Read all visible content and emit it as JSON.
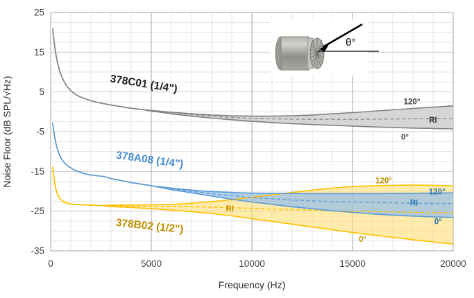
{
  "chart_data": {
    "type": "line",
    "title": "",
    "xlabel": "Frequency (Hz)",
    "ylabel": "Noise Floor (dB SPL/√Hz)",
    "xlim": [
      0,
      20000
    ],
    "ylim": [
      -35,
      25
    ],
    "x_ticks": [
      0,
      5000,
      10000,
      15000,
      20000
    ],
    "y_ticks": [
      25,
      15,
      5,
      -5,
      -15,
      -25,
      -35
    ],
    "x_minor_step_hz": 1000,
    "y_minor_step_db": 2.5,
    "grid": true,
    "legend_position": "inline-annotations",
    "series": [
      {
        "id": "378B02",
        "name": "378B02 (1/2\")",
        "color": "#ffc000",
        "dash_color": "#ffc000",
        "fill": "#ffda66",
        "fill_opacity": 0.55,
        "label": {
          "text": "378B02 (1/2\")",
          "f": 4900,
          "db": -29.6,
          "rot": 6,
          "color": "#bf9000"
        },
        "annotations": [
          {
            "text": "120°",
            "f": 16550,
            "db": -17.3,
            "color": "#bf9000"
          },
          {
            "text": "RI",
            "f": 8900,
            "db": -24.4,
            "color": "#bf9000"
          },
          {
            "text": "0°",
            "f": 15500,
            "db": -32.0,
            "color": "#bf9000"
          }
        ],
        "ri": [
          [
            100,
            -13.8
          ],
          [
            150,
            -16.1
          ],
          [
            200,
            -17.9
          ],
          [
            250,
            -19.2
          ],
          [
            300,
            -20.2
          ],
          [
            400,
            -21.4
          ],
          [
            500,
            -22.1
          ],
          [
            600,
            -22.5
          ],
          [
            700,
            -22.8
          ],
          [
            800,
            -23
          ],
          [
            1000,
            -23.2
          ],
          [
            1200,
            -23.3
          ],
          [
            1500,
            -23.4
          ],
          [
            2000,
            -23.5
          ],
          [
            2500,
            -23.6
          ],
          [
            3000,
            -23.65
          ],
          [
            4000,
            -23.75
          ],
          [
            5000,
            -23.8
          ],
          [
            6000,
            -23.85
          ],
          [
            7000,
            -23.9
          ],
          [
            8000,
            -24
          ],
          [
            9000,
            -24.15
          ],
          [
            10000,
            -24.3
          ],
          [
            11000,
            -24.45
          ],
          [
            12000,
            -24.6
          ],
          [
            13000,
            -24.75
          ],
          [
            14000,
            -24.9
          ],
          [
            15000,
            -25
          ],
          [
            16000,
            -25.1
          ],
          [
            17000,
            -25.2
          ],
          [
            18000,
            -25.3
          ],
          [
            19000,
            -25.35
          ],
          [
            20000,
            -25.4
          ]
        ],
        "upper": [
          [
            2700,
            -23.55
          ],
          [
            3000,
            -23.5
          ],
          [
            4000,
            -23.45
          ],
          [
            5000,
            -23.4
          ],
          [
            6000,
            -23.3
          ],
          [
            7000,
            -23
          ],
          [
            8000,
            -22.6
          ],
          [
            9000,
            -22.1
          ],
          [
            10000,
            -21.5
          ],
          [
            11000,
            -20.9
          ],
          [
            12000,
            -20.3
          ],
          [
            13000,
            -19.7
          ],
          [
            14000,
            -19.2
          ],
          [
            15000,
            -18.8
          ],
          [
            16000,
            -18.6
          ],
          [
            17000,
            -18.5
          ],
          [
            18000,
            -18.45
          ],
          [
            19000,
            -18.5
          ],
          [
            20000,
            -18.6
          ]
        ],
        "lower": [
          [
            2700,
            -23.7
          ],
          [
            3000,
            -23.85
          ],
          [
            4000,
            -24.1
          ],
          [
            5000,
            -24.4
          ],
          [
            6000,
            -24.75
          ],
          [
            7000,
            -25.15
          ],
          [
            8000,
            -25.6
          ],
          [
            9000,
            -26.2
          ],
          [
            10000,
            -26.9
          ],
          [
            11000,
            -27.6
          ],
          [
            12000,
            -28.3
          ],
          [
            13000,
            -29
          ],
          [
            14000,
            -29.7
          ],
          [
            15000,
            -30.4
          ],
          [
            16000,
            -31
          ],
          [
            17000,
            -31.6
          ],
          [
            18000,
            -32.2
          ],
          [
            19000,
            -32.75
          ],
          [
            20000,
            -33.3
          ]
        ]
      },
      {
        "id": "378A08",
        "name": "378A08 (1/4\")",
        "color": "#5b9bd5",
        "dash_color": "#5b9bd5",
        "fill": "#9dc3e6",
        "fill_opacity": 0.8,
        "label": {
          "text": "378A08 (1/4\")",
          "f": 4900,
          "db": -12.9,
          "rot": 8,
          "color": "#4a8fd1"
        },
        "annotations": [
          {
            "text": "120°",
            "f": 19200,
            "db": -20.1,
            "color": "#2e75b6"
          },
          {
            "text": "RI",
            "f": 18050,
            "db": -22.9,
            "color": "#2e75b6"
          },
          {
            "text": "0°",
            "f": 19250,
            "db": -27.6,
            "color": "#2e75b6"
          }
        ],
        "ri": [
          [
            100,
            -2.8
          ],
          [
            150,
            -4.6
          ],
          [
            200,
            -6.3
          ],
          [
            250,
            -7.7
          ],
          [
            300,
            -8.8
          ],
          [
            400,
            -10.4
          ],
          [
            500,
            -11.5
          ],
          [
            600,
            -12.3
          ],
          [
            700,
            -12.9
          ],
          [
            800,
            -13.4
          ],
          [
            900,
            -13.8
          ],
          [
            1000,
            -14.1
          ],
          [
            1200,
            -14.7
          ],
          [
            1400,
            -15.1
          ],
          [
            1700,
            -15.6
          ],
          [
            2000,
            -15.9
          ],
          [
            2300,
            -16.1
          ],
          [
            2600,
            -16.25
          ],
          [
            2800,
            -16.5
          ],
          [
            3000,
            -16.8
          ],
          [
            3500,
            -17.3
          ],
          [
            4000,
            -17.8
          ],
          [
            4500,
            -18.2
          ],
          [
            5000,
            -18.6
          ],
          [
            5500,
            -19
          ],
          [
            6000,
            -19.4
          ],
          [
            6500,
            -19.7
          ],
          [
            7000,
            -20
          ],
          [
            7500,
            -20.3
          ],
          [
            8000,
            -20.6
          ],
          [
            8500,
            -20.9
          ],
          [
            9000,
            -21.1
          ],
          [
            9500,
            -21.35
          ],
          [
            10000,
            -21.6
          ],
          [
            11000,
            -21.9
          ],
          [
            12000,
            -22.2
          ],
          [
            13000,
            -22.4
          ],
          [
            14000,
            -22.6
          ],
          [
            15000,
            -22.7
          ],
          [
            16000,
            -22.8
          ],
          [
            17000,
            -22.9
          ],
          [
            18000,
            -23
          ],
          [
            19000,
            -23.05
          ],
          [
            20000,
            -23.1
          ]
        ],
        "upper": [
          [
            5500,
            -18.9
          ],
          [
            6000,
            -19.2
          ],
          [
            6500,
            -19.45
          ],
          [
            7000,
            -19.7
          ],
          [
            7500,
            -19.9
          ],
          [
            8000,
            -20.05
          ],
          [
            8500,
            -20.2
          ],
          [
            9000,
            -20.3
          ],
          [
            9500,
            -20.4
          ],
          [
            10000,
            -20.45
          ],
          [
            11000,
            -20.5
          ],
          [
            12000,
            -20.55
          ],
          [
            13000,
            -20.6
          ],
          [
            14000,
            -20.6
          ],
          [
            15000,
            -20.6
          ],
          [
            16000,
            -20.6
          ],
          [
            17000,
            -20.55
          ],
          [
            18000,
            -20.5
          ],
          [
            19000,
            -20.45
          ],
          [
            20000,
            -20.4
          ]
        ],
        "lower": [
          [
            5500,
            -19.1
          ],
          [
            6000,
            -19.6
          ],
          [
            6500,
            -20
          ],
          [
            7000,
            -20.4
          ],
          [
            7500,
            -20.8
          ],
          [
            8000,
            -21.2
          ],
          [
            8500,
            -21.6
          ],
          [
            9000,
            -22
          ],
          [
            9500,
            -22.35
          ],
          [
            10000,
            -22.7
          ],
          [
            11000,
            -23.3
          ],
          [
            12000,
            -23.9
          ],
          [
            13000,
            -24.4
          ],
          [
            14000,
            -24.9
          ],
          [
            15000,
            -25.3
          ],
          [
            16000,
            -25.7
          ],
          [
            17000,
            -26
          ],
          [
            18000,
            -26.25
          ],
          [
            19000,
            -26.45
          ],
          [
            20000,
            -26.6
          ]
        ]
      },
      {
        "id": "378C01",
        "name": "378C01 (1/4\")",
        "color": "#7f7f7f",
        "dash_color": "#8c8c8c",
        "fill": "#d2d2d2",
        "fill_opacity": 0.9,
        "label": {
          "text": "378C01 (1/4\")",
          "f": 4600,
          "db": 6.2,
          "rot": 9,
          "color": "#1f1f1f"
        },
        "annotations": [
          {
            "text": "120°",
            "f": 17950,
            "db": 2.6,
            "color": "#404040"
          },
          {
            "text": "RI",
            "f": 19000,
            "db": -2.0,
            "color": "#333333"
          },
          {
            "text": "0°",
            "f": 17600,
            "db": -6.3,
            "color": "#404040"
          }
        ],
        "ri": [
          [
            100,
            21
          ],
          [
            150,
            18.6
          ],
          [
            200,
            16.4
          ],
          [
            250,
            14.7
          ],
          [
            300,
            13.3
          ],
          [
            400,
            11.1
          ],
          [
            500,
            9.5
          ],
          [
            600,
            8.3
          ],
          [
            700,
            7.3
          ],
          [
            800,
            6.5
          ],
          [
            900,
            5.9
          ],
          [
            1000,
            5.3
          ],
          [
            1200,
            4.5
          ],
          [
            1400,
            3.9
          ],
          [
            1700,
            3.3
          ],
          [
            2000,
            2.8
          ],
          [
            2300,
            2.4
          ],
          [
            2600,
            2.1
          ],
          [
            3000,
            1.7
          ],
          [
            3500,
            1.3
          ],
          [
            4000,
            0.9
          ],
          [
            4500,
            0.6
          ],
          [
            5000,
            0.3
          ],
          [
            5500,
            0.05
          ],
          [
            6000,
            -0.2
          ],
          [
            6500,
            -0.45
          ],
          [
            7000,
            -0.7
          ],
          [
            7500,
            -0.9
          ],
          [
            8000,
            -1.1
          ],
          [
            8500,
            -1.3
          ],
          [
            9000,
            -1.45
          ],
          [
            9500,
            -1.55
          ],
          [
            10000,
            -1.65
          ],
          [
            11000,
            -1.75
          ],
          [
            12000,
            -1.85
          ],
          [
            13000,
            -1.9
          ],
          [
            14000,
            -1.9
          ],
          [
            15000,
            -1.9
          ],
          [
            16000,
            -1.85
          ],
          [
            17000,
            -1.8
          ],
          [
            18000,
            -1.75
          ],
          [
            19000,
            -1.7
          ],
          [
            20000,
            -1.65
          ]
        ],
        "upper": [
          [
            5000,
            0.35
          ],
          [
            6000,
            -0.1
          ],
          [
            7000,
            -0.5
          ],
          [
            8000,
            -0.8
          ],
          [
            9000,
            -1
          ],
          [
            10000,
            -1.1
          ],
          [
            11000,
            -1.1
          ],
          [
            12000,
            -1
          ],
          [
            13000,
            -0.8
          ],
          [
            14000,
            -0.5
          ],
          [
            15000,
            -0.2
          ],
          [
            16000,
            0.15
          ],
          [
            17000,
            0.5
          ],
          [
            18000,
            0.85
          ],
          [
            19000,
            1.15
          ],
          [
            20000,
            1.5
          ]
        ],
        "lower": [
          [
            5000,
            0.2
          ],
          [
            6000,
            -0.5
          ],
          [
            7000,
            -1.1
          ],
          [
            8000,
            -1.6
          ],
          [
            9000,
            -2
          ],
          [
            10000,
            -2.4
          ],
          [
            11000,
            -2.7
          ],
          [
            12000,
            -3
          ],
          [
            13000,
            -3.2
          ],
          [
            14000,
            -3.4
          ],
          [
            15000,
            -3.6
          ],
          [
            16000,
            -3.8
          ],
          [
            17000,
            -3.95
          ],
          [
            18000,
            -4.1
          ],
          [
            19000,
            -4.2
          ],
          [
            20000,
            -4.3
          ]
        ]
      }
    ]
  },
  "inset": {
    "theta_label": "θ°"
  },
  "colors": {
    "grid_minor": "#e4e4e4",
    "grid_major_h": "#cccccc",
    "grid_major_v": "#a6a6a6",
    "plot_border": "#b3b3b3",
    "tick_text": "#404040",
    "axis_title_text": "#262626"
  }
}
